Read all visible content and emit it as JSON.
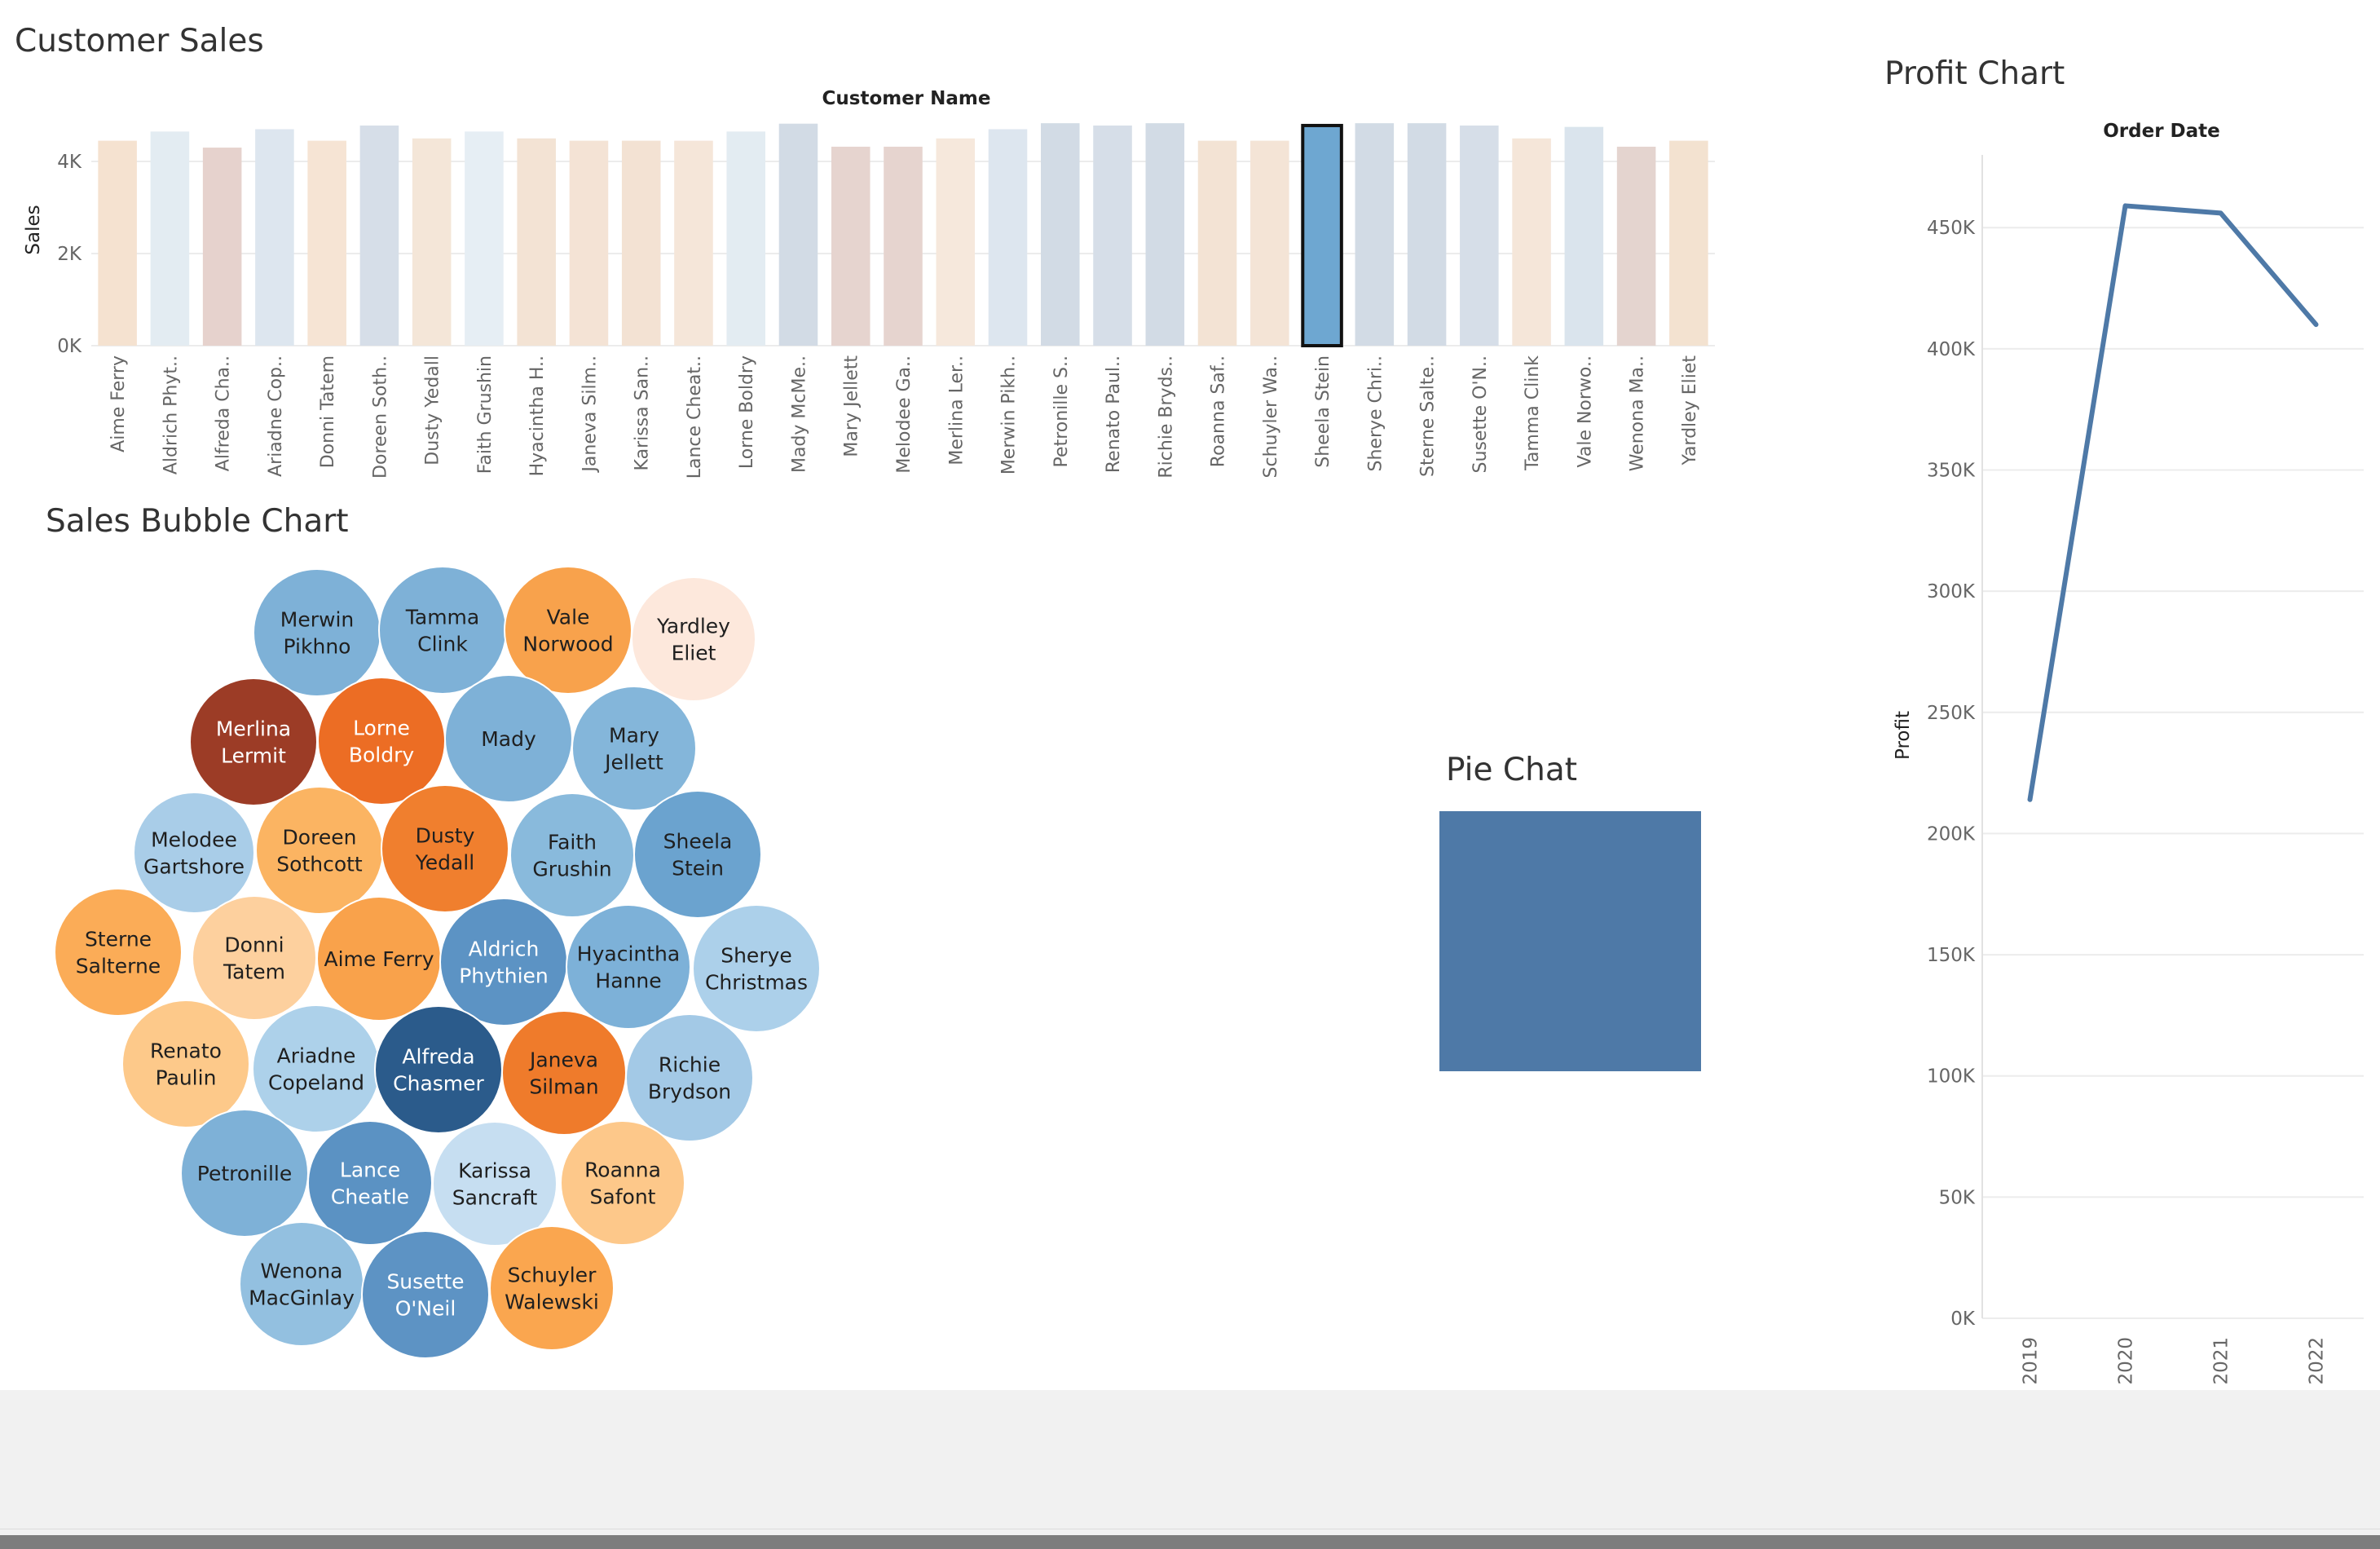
{
  "customer_sales": {
    "title": "Customer Sales",
    "chart_data": {
      "type": "bar",
      "title": "Customer Sales",
      "xlabel": "Customer Name",
      "ylabel": "Sales",
      "ylim": [
        0,
        4850
      ],
      "yticks": [
        "0K",
        "2K",
        "4K"
      ],
      "selected": "Sheela Stein",
      "categories": [
        "Aime Ferry",
        "Aldrich Phyt..",
        "Alfreda Cha..",
        "Ariadne Cop..",
        "Donni Tatem",
        "Doreen Soth..",
        "Dusty Yedall",
        "Faith Grushin",
        "Hyacintha H..",
        "Janeva Silm..",
        "Karissa San..",
        "Lance Cheat..",
        "Lorne Boldry",
        "Mady McMe..",
        "Mary Jellett",
        "Melodee Ga..",
        "Merlina Ler..",
        "Merwin Pikh..",
        "Petronille S..",
        "Renato Paul..",
        "Richie Bryds..",
        "Roanna Saf..",
        "Schuyler Wa..",
        "Sheela Stein",
        "Sherye Chri..",
        "Sterne Salte..",
        "Susette O'N..",
        "Tamma Clink",
        "Vale Norwo..",
        "Wenona Ma..",
        "Yardley Eliet"
      ],
      "values": [
        4450,
        4650,
        4300,
        4700,
        4450,
        4780,
        4500,
        4650,
        4500,
        4450,
        4450,
        4450,
        4650,
        4820,
        4320,
        4320,
        4500,
        4700,
        4830,
        4780,
        4830,
        4450,
        4450,
        4780,
        4830,
        4830,
        4780,
        4500,
        4750,
        4320,
        4450
      ],
      "colors": [
        "#f5e2d0",
        "#e3ecf2",
        "#e6d2cd",
        "#dde6ef",
        "#f6e4d4",
        "#d6dee8",
        "#f4e6d8",
        "#e6eef4",
        "#f3e3d4",
        "#f4e3d5",
        "#f3e2d3",
        "#f5e6d9",
        "#e3ecf2",
        "#d2dbe5",
        "#e6d4cf",
        "#e6d4cf",
        "#f6e8dc",
        "#dde6ef",
        "#d2dbe5",
        "#d6dee8",
        "#d2dbe5",
        "#f3e3d4",
        "#f4e4d6",
        "#6ea7d1",
        "#d2dbe5",
        "#d2dbe5",
        "#d6dee8",
        "#f5e6d9",
        "#dae4ed",
        "#e4d4cf",
        "#f3e2d0"
      ]
    }
  },
  "bubble": {
    "title": "Sales Bubble Chart",
    "chart_data": {
      "type": "bubble",
      "bubbles": [
        {
          "lines": [
            "Merwin",
            "Pikhno"
          ],
          "color": "#7eb1d7",
          "text": "#1f1f1f"
        },
        {
          "lines": [
            "Tamma",
            "Clink"
          ],
          "color": "#7eb1d7",
          "text": "#1f1f1f"
        },
        {
          "lines": [
            "Vale",
            "Norwood"
          ],
          "color": "#f8a24c",
          "text": "#1f1f1f"
        },
        {
          "lines": [
            "Yardley",
            "Eliet"
          ],
          "color": "#fde8dc",
          "text": "#1f1f1f"
        },
        {
          "lines": [
            "Merlina",
            "Lermit"
          ],
          "color": "#9c3c26",
          "text": "#ffffff"
        },
        {
          "lines": [
            "Lorne",
            "Boldry"
          ],
          "color": "#ec6d24",
          "text": "#ffffff"
        },
        {
          "lines": [
            "Mady"
          ],
          "color": "#7eb1d7",
          "text": "#1f1f1f"
        },
        {
          "lines": [
            "Mary",
            "Jellett"
          ],
          "color": "#84b6da",
          "text": "#1f1f1f"
        },
        {
          "lines": [
            "Melodee",
            "Gartshore"
          ],
          "color": "#a9cde8",
          "text": "#1f1f1f"
        },
        {
          "lines": [
            "Doreen",
            "Sothcott"
          ],
          "color": "#fbb462",
          "text": "#1f1f1f"
        },
        {
          "lines": [
            "Dusty",
            "Yedall"
          ],
          "color": "#f07f2e",
          "text": "#1f1f1f"
        },
        {
          "lines": [
            "Faith",
            "Grushin"
          ],
          "color": "#89badc",
          "text": "#1f1f1f"
        },
        {
          "lines": [
            "Sheela",
            "Stein"
          ],
          "color": "#6ba3cf",
          "text": "#1f1f1f"
        },
        {
          "lines": [
            "Sterne",
            "Salterne"
          ],
          "color": "#fbac57",
          "text": "#1f1f1f"
        },
        {
          "lines": [
            "Donni",
            "Tatem"
          ],
          "color": "#fdd09e",
          "text": "#1f1f1f"
        },
        {
          "lines": [
            "Aime Ferry"
          ],
          "color": "#f9a24b",
          "text": "#1f1f1f"
        },
        {
          "lines": [
            "Aldrich",
            "Phythien"
          ],
          "color": "#5c93c4",
          "text": "#ffffff"
        },
        {
          "lines": [
            "Hyacintha",
            "Hanne"
          ],
          "color": "#7db1d8",
          "text": "#1f1f1f"
        },
        {
          "lines": [
            "Sherye",
            "Christmas"
          ],
          "color": "#acd0ea",
          "text": "#1f1f1f"
        },
        {
          "lines": [
            "Renato",
            "Paulin"
          ],
          "color": "#fdc98a",
          "text": "#1f1f1f"
        },
        {
          "lines": [
            "Ariadne",
            "Copeland"
          ],
          "color": "#add1ea",
          "text": "#1f1f1f"
        },
        {
          "lines": [
            "Alfreda",
            "Chasmer"
          ],
          "color": "#2b5b8b",
          "text": "#ffffff"
        },
        {
          "lines": [
            "Janeva",
            "Silman"
          ],
          "color": "#ef7b2b",
          "text": "#1f1f1f"
        },
        {
          "lines": [
            "Richie",
            "Brydson"
          ],
          "color": "#a3c9e6",
          "text": "#1f1f1f"
        },
        {
          "lines": [
            "Petronille"
          ],
          "color": "#7eb1d7",
          "text": "#1f1f1f"
        },
        {
          "lines": [
            "Lance",
            "Cheatle"
          ],
          "color": "#5b92c3",
          "text": "#ffffff"
        },
        {
          "lines": [
            "Karissa",
            "Sancraft"
          ],
          "color": "#c6def1",
          "text": "#1f1f1f"
        },
        {
          "lines": [
            "Roanna",
            "Safont"
          ],
          "color": "#fdc88a",
          "text": "#1f1f1f"
        },
        {
          "lines": [
            "Wenona",
            "MacGinlay"
          ],
          "color": "#93c0e0",
          "text": "#1f1f1f"
        },
        {
          "lines": [
            "Susette",
            "O'Neil"
          ],
          "color": "#5d93c4",
          "text": "#ffffff"
        },
        {
          "lines": [
            "Schuyler",
            "Walewski"
          ],
          "color": "#faa64f",
          "text": "#1f1f1f"
        }
      ]
    }
  },
  "pie": {
    "title": "Pie Chat",
    "chart_data": {
      "type": "pie",
      "values": [
        1
      ],
      "color": "#4e79a7"
    }
  },
  "profit": {
    "title": "Profit Chart",
    "chart_data": {
      "type": "line",
      "xlabel": "Order Date",
      "ylabel": "Profit",
      "x": [
        "2019",
        "2020",
        "2021",
        "2022"
      ],
      "values": [
        214000,
        459000,
        456000,
        410000
      ],
      "ylim": [
        0,
        480000
      ],
      "yticks": [
        {
          "v": 0,
          "label": "0K"
        },
        {
          "v": 50000,
          "label": "50K"
        },
        {
          "v": 100000,
          "label": "100K"
        },
        {
          "v": 150000,
          "label": "150K"
        },
        {
          "v": 200000,
          "label": "200K"
        },
        {
          "v": 250000,
          "label": "250K"
        },
        {
          "v": 300000,
          "label": "300K"
        },
        {
          "v": 350000,
          "label": "350K"
        },
        {
          "v": 400000,
          "label": "400K"
        },
        {
          "v": 450000,
          "label": "450K"
        }
      ],
      "color": "#4e79a7"
    }
  }
}
